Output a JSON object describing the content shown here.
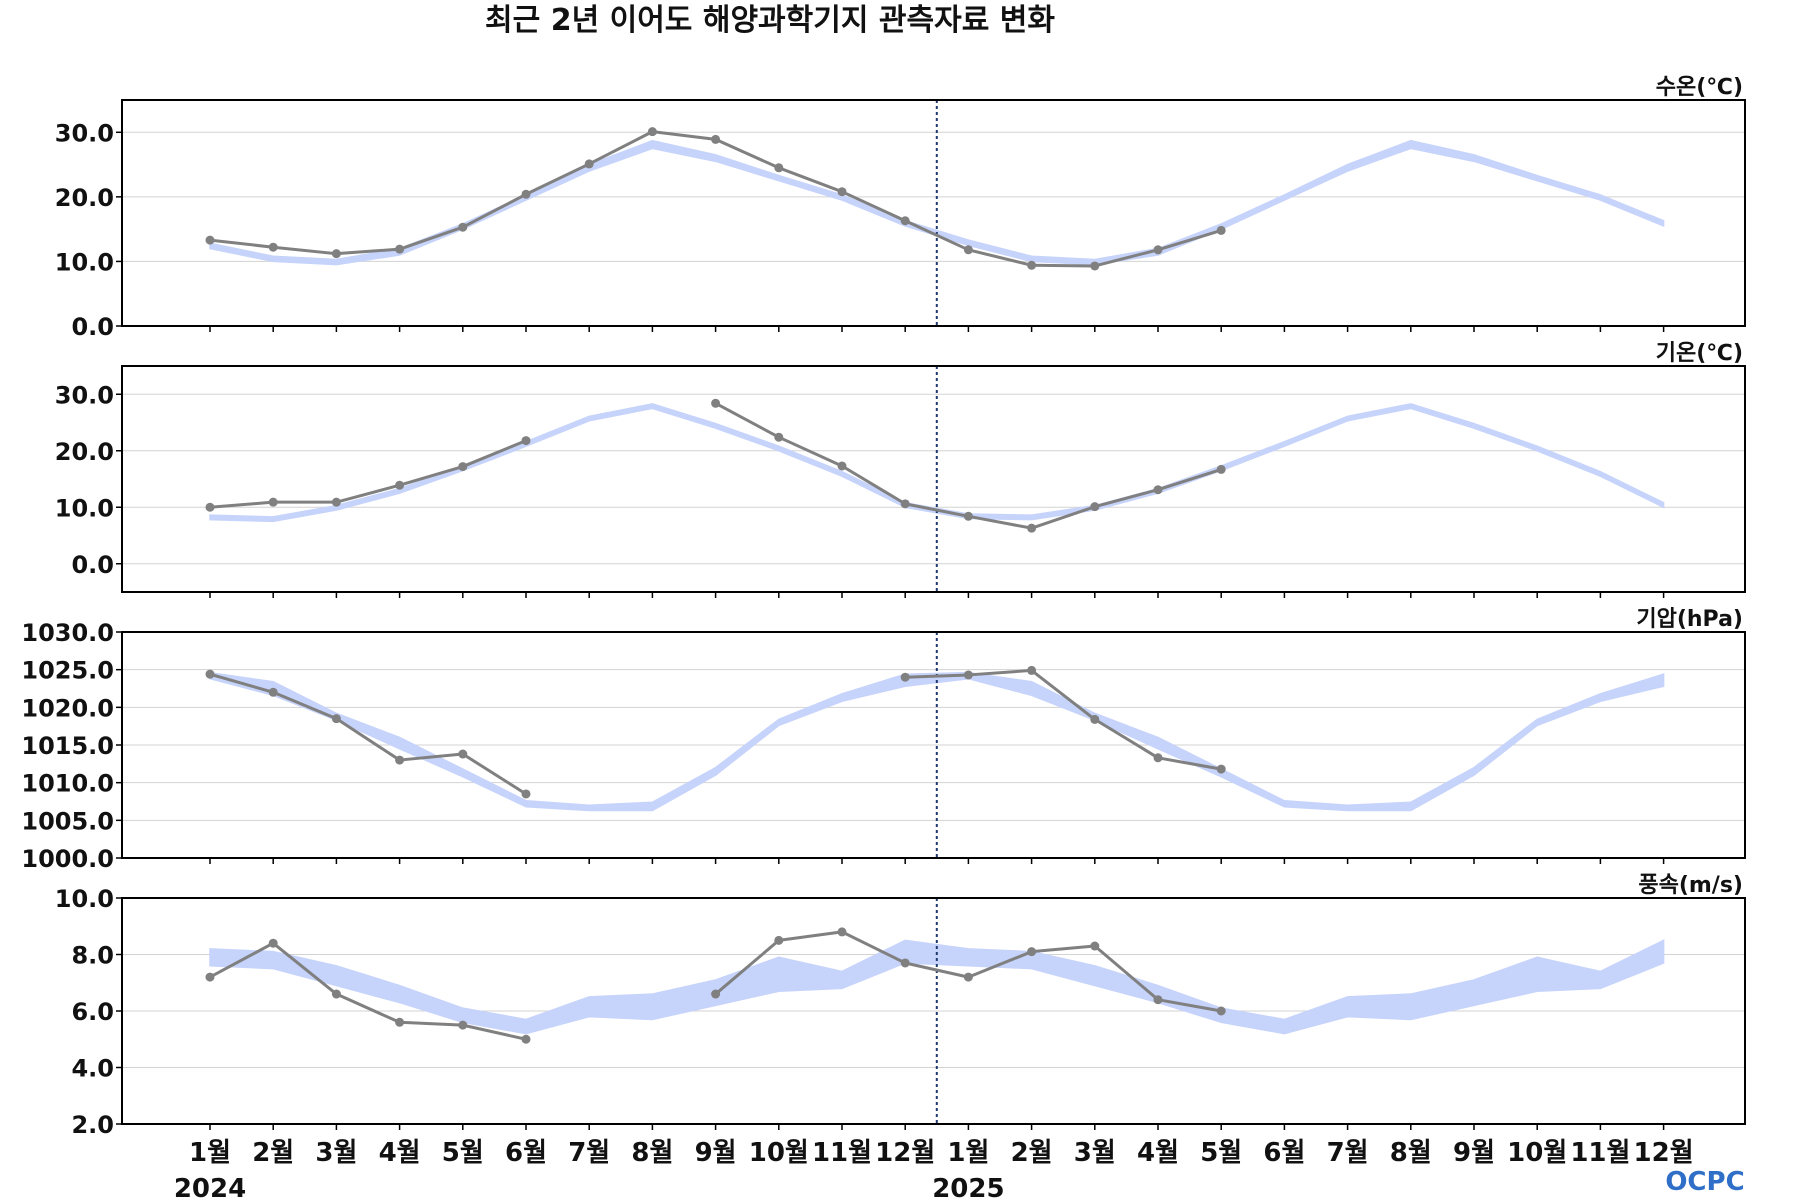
{
  "chart_data": {
    "title": "최근 2년 이어도 해양과학기지 관측자료 변화",
    "x_labels": [
      "1월",
      "2월",
      "3월",
      "4월",
      "5월",
      "6월",
      "7월",
      "8월",
      "9월",
      "10월",
      "11월",
      "12월",
      "1월",
      "2월",
      "3월",
      "4월",
      "5월",
      "6월",
      "7월",
      "8월",
      "9월",
      "10월",
      "11월",
      "12월"
    ],
    "years": [
      {
        "label": "2024",
        "month_index": 0
      },
      {
        "label": "2025",
        "month_index": 12
      }
    ],
    "year_divider_after_index": 11,
    "logo_text": "OCPC",
    "colors": {
      "observed": "#808080",
      "band": "#c6d3fb",
      "divider": "#1f3a6e",
      "grid": "#d3d3d3"
    },
    "panels": [
      {
        "type": "line",
        "unit_label": "수온(℃)",
        "ylim": [
          0,
          35
        ],
        "yticks": [
          0,
          10,
          20,
          30
        ],
        "ytick_labels": [
          "0.0",
          "10.0",
          "20.0",
          "30.0"
        ],
        "band_low": [
          12.0,
          10.0,
          9.5,
          11.0,
          15.0,
          19.5,
          24.0,
          27.5,
          25.5,
          22.5,
          19.5,
          15.5,
          12.5,
          10.0,
          9.5,
          11.0,
          15.0,
          19.5,
          24.0,
          27.5,
          25.5,
          22.5,
          19.5,
          15.5
        ],
        "band_high": [
          12.8,
          10.8,
          10.3,
          12.0,
          15.8,
          20.3,
          25.0,
          28.7,
          26.5,
          23.3,
          20.3,
          16.3,
          13.3,
          10.8,
          10.3,
          12.0,
          15.8,
          20.3,
          25.0,
          28.7,
          26.5,
          23.3,
          20.3,
          16.3
        ],
        "observed": [
          13.3,
          12.2,
          11.2,
          11.9,
          15.3,
          20.4,
          25.1,
          30.1,
          28.9,
          24.5,
          20.8,
          16.3,
          11.8,
          9.4,
          9.3,
          11.8,
          14.8,
          null,
          null,
          null,
          null,
          null,
          null,
          null
        ]
      },
      {
        "type": "line",
        "unit_label": "기온(℃)",
        "ylim": [
          -5,
          35
        ],
        "yticks": [
          0,
          10,
          20,
          30
        ],
        "ytick_labels": [
          "0.0",
          "10.0",
          "20.0",
          "30.0"
        ],
        "band_low": [
          7.8,
          7.5,
          9.5,
          12.5,
          16.5,
          20.8,
          25.3,
          27.5,
          24.0,
          20.0,
          15.5,
          10.0,
          8.0,
          7.8,
          9.5,
          12.5,
          16.5,
          20.8,
          25.3,
          27.5,
          24.0,
          20.0,
          15.5,
          10.0
        ],
        "band_high": [
          8.6,
          8.3,
          10.3,
          13.3,
          17.3,
          21.6,
          26.1,
          28.3,
          24.8,
          20.8,
          16.3,
          10.8,
          8.8,
          8.6,
          10.3,
          13.3,
          17.3,
          21.6,
          26.1,
          28.3,
          24.8,
          20.8,
          16.3,
          10.8
        ],
        "observed": [
          10.0,
          10.9,
          10.9,
          13.9,
          17.2,
          21.8,
          null,
          null,
          28.4,
          22.4,
          17.3,
          10.6,
          8.4,
          6.3,
          10.1,
          13.1,
          16.7,
          null,
          null,
          null,
          null,
          null,
          null,
          null
        ]
      },
      {
        "type": "line",
        "unit_label": "기압(hPa)",
        "ylim": [
          1000,
          1030
        ],
        "yticks": [
          1000,
          1005,
          1010,
          1015,
          1020,
          1025,
          1030
        ],
        "ytick_labels": [
          "1000.0",
          "1005.0",
          "1010.0",
          "1015.0",
          "1020.0",
          "1025.0",
          "1030.0"
        ],
        "band_low": [
          1023.8,
          1021.6,
          1018.3,
          1014.5,
          1010.8,
          1006.8,
          1006.3,
          1006.3,
          1011.0,
          1017.6,
          1020.8,
          1022.8,
          1023.8,
          1021.6,
          1018.3,
          1014.5,
          1010.8,
          1006.8,
          1006.3,
          1006.3,
          1011.0,
          1017.6,
          1020.8,
          1022.8
        ],
        "band_high": [
          1024.6,
          1023.4,
          1019.2,
          1016.0,
          1011.8,
          1007.6,
          1007.0,
          1007.4,
          1012.0,
          1018.4,
          1021.8,
          1024.4,
          1024.6,
          1023.4,
          1019.2,
          1016.0,
          1011.8,
          1007.6,
          1007.0,
          1007.4,
          1012.0,
          1018.4,
          1021.8,
          1024.4
        ],
        "observed": [
          1024.4,
          1022.0,
          1018.5,
          1013.0,
          1013.8,
          1008.5,
          null,
          null,
          null,
          null,
          null,
          1024.0,
          1024.3,
          1024.9,
          1018.4,
          1013.3,
          1011.8,
          null,
          null,
          null,
          null,
          null,
          null,
          null
        ]
      },
      {
        "type": "line",
        "unit_label": "풍속(m/s)",
        "ylim": [
          2,
          10
        ],
        "yticks": [
          2,
          4,
          6,
          8,
          10
        ],
        "ytick_labels": [
          "2.0",
          "4.0",
          "6.0",
          "8.0",
          "10.0"
        ],
        "band_low": [
          7.6,
          7.5,
          6.9,
          6.3,
          5.6,
          5.2,
          5.8,
          5.7,
          6.2,
          6.7,
          6.8,
          7.7,
          7.6,
          7.5,
          6.9,
          6.3,
          5.6,
          5.2,
          5.8,
          5.7,
          6.2,
          6.7,
          6.8,
          7.7
        ],
        "band_high": [
          8.2,
          8.1,
          7.6,
          6.9,
          6.1,
          5.7,
          6.5,
          6.6,
          7.1,
          7.9,
          7.4,
          8.5,
          8.2,
          8.1,
          7.6,
          6.9,
          6.1,
          5.7,
          6.5,
          6.6,
          7.1,
          7.9,
          7.4,
          8.5
        ],
        "observed": [
          7.2,
          8.4,
          6.6,
          5.6,
          5.5,
          5.0,
          null,
          null,
          6.6,
          8.5,
          8.8,
          7.7,
          7.2,
          8.1,
          8.3,
          6.4,
          6.0,
          null,
          null,
          null,
          null,
          null,
          null,
          null
        ]
      }
    ]
  }
}
